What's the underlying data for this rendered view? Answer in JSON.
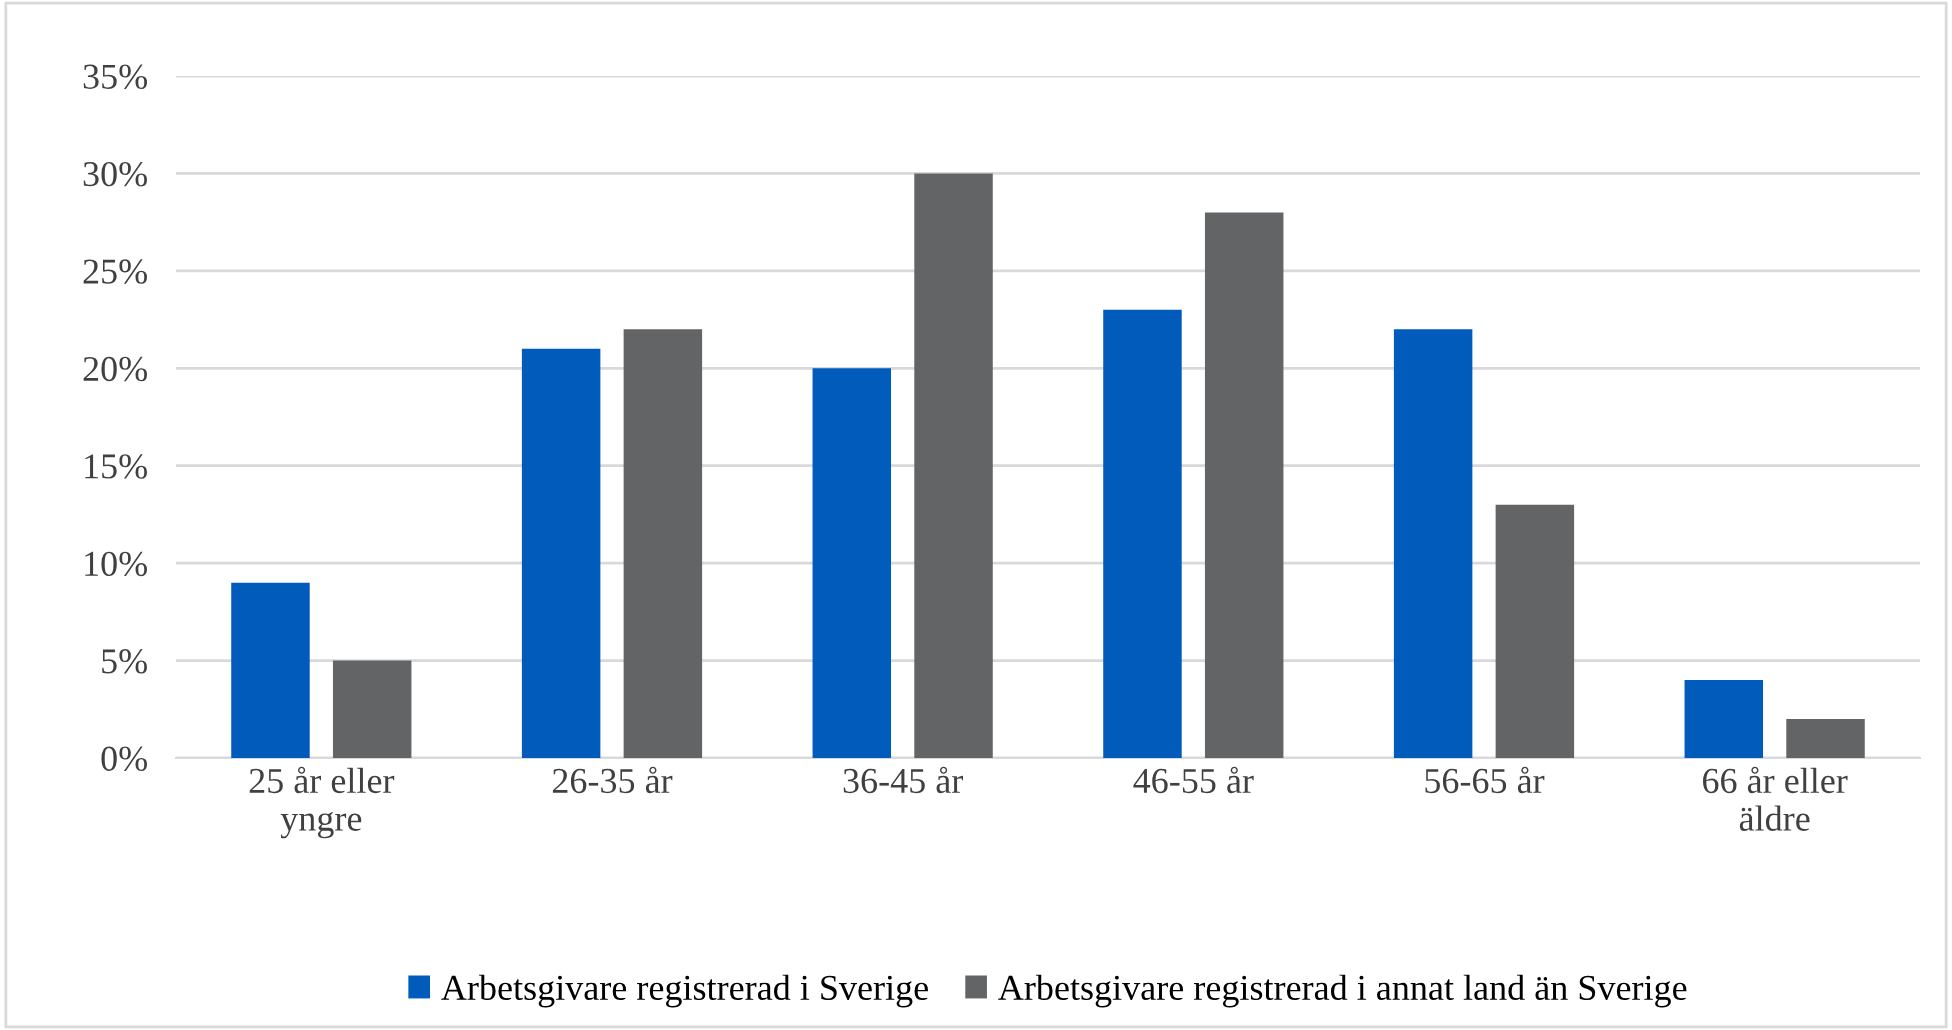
{
  "chart_data": {
    "type": "bar",
    "categories": [
      "25 år eller\nyngre",
      "26-35 år",
      "36-45 år",
      "46-55 år",
      "56-65 år",
      "66 år eller\näldre"
    ],
    "series": [
      {
        "name": "Arbetsgivare registrerad i Sverige",
        "color": "#005bbb",
        "values": [
          9,
          21,
          20,
          23,
          22,
          4
        ]
      },
      {
        "name": "Arbetsgivare registrerad i annat land än Sverige",
        "color": "#636466",
        "values": [
          5,
          22,
          30,
          28,
          13,
          2
        ]
      }
    ],
    "ylim": [
      0,
      35
    ],
    "yticks": [
      {
        "value": 0,
        "label": "0%"
      },
      {
        "value": 5,
        "label": "5%"
      },
      {
        "value": 10,
        "label": "10%"
      },
      {
        "value": 15,
        "label": "15%"
      },
      {
        "value": 20,
        "label": "20%"
      },
      {
        "value": 25,
        "label": "25%"
      },
      {
        "value": 30,
        "label": "30%"
      },
      {
        "value": 35,
        "label": "35%"
      }
    ],
    "grid": "y",
    "legend": "bottom"
  }
}
